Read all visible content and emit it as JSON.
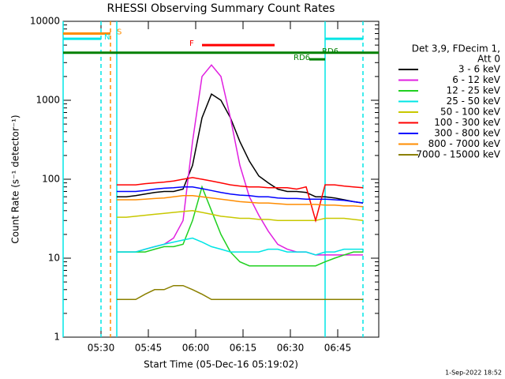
{
  "chart_data": {
    "type": "line",
    "title": "RHESSI Observing Summary Count Rates",
    "xlabel": "Start Time (05-Dec-16 05:19:02)",
    "ylabel": "Count Rate (s⁻¹ detector⁻¹)",
    "footer": "1-Sep-2022 18:52",
    "legend_title": [
      "Det 3,9, FDecim 1,",
      "Att 0"
    ],
    "log_y": true,
    "xlim": [
      "05:18",
      "06:58"
    ],
    "xticks": [
      "05:30",
      "05:45",
      "06:00",
      "06:15",
      "06:30",
      "06:45"
    ],
    "ylim": [
      1,
      10000
    ],
    "yticks": [
      1,
      10,
      100,
      1000,
      10000
    ],
    "x": [
      "05:35",
      "05:38",
      "05:41",
      "05:44",
      "05:47",
      "05:50",
      "05:53",
      "05:56",
      "05:59",
      "06:02",
      "06:05",
      "06:08",
      "06:11",
      "06:14",
      "06:17",
      "06:20",
      "06:23",
      "06:26",
      "06:29",
      "06:32",
      "06:35",
      "06:38",
      "06:41",
      "06:44",
      "06:47",
      "06:50",
      "06:53"
    ],
    "series": [
      {
        "name": "3 - 6 keV",
        "color": "#000000",
        "values": [
          60,
          60,
          62,
          65,
          68,
          70,
          70,
          75,
          150,
          600,
          1200,
          1000,
          600,
          300,
          170,
          110,
          90,
          75,
          70,
          70,
          68,
          60,
          60,
          58,
          55,
          52,
          50
        ]
      },
      {
        "name": "6 - 12 keV",
        "color": "#e020e0",
        "values": [
          12,
          12,
          12,
          13,
          14,
          15,
          18,
          30,
          300,
          2000,
          2800,
          2000,
          600,
          150,
          60,
          35,
          22,
          15,
          13,
          12,
          12,
          11,
          11,
          11,
          11,
          11,
          11
        ]
      },
      {
        "name": "12 - 25 keV",
        "color": "#20d020",
        "values": [
          12,
          12,
          12,
          12,
          13,
          14,
          14,
          15,
          30,
          80,
          40,
          20,
          12,
          9,
          8,
          8,
          8,
          8,
          8,
          8,
          8,
          8,
          9,
          10,
          11,
          12,
          12
        ]
      },
      {
        "name": "25 - 50 keV",
        "color": "#00e5e5",
        "values": [
          12,
          12,
          12,
          13,
          14,
          15,
          16,
          17,
          18,
          16,
          14,
          13,
          12,
          12,
          12,
          12,
          13,
          13,
          12,
          12,
          12,
          11,
          12,
          12,
          13,
          13,
          13
        ]
      },
      {
        "name": "50 - 100 keV",
        "color": "#c8c800",
        "values": [
          33,
          33,
          34,
          35,
          36,
          37,
          38,
          39,
          40,
          38,
          36,
          34,
          33,
          32,
          32,
          31,
          31,
          30,
          30,
          30,
          30,
          30,
          32,
          32,
          32,
          31,
          30
        ]
      },
      {
        "name": "100 - 300 keV",
        "color": "#ff0000",
        "values": [
          85,
          85,
          85,
          88,
          90,
          92,
          95,
          100,
          105,
          100,
          95,
          90,
          85,
          82,
          80,
          80,
          78,
          78,
          78,
          75,
          80,
          30,
          85,
          85,
          82,
          80,
          78
        ]
      },
      {
        "name": "300 - 800 keV",
        "color": "#0000ff",
        "values": [
          70,
          70,
          70,
          72,
          75,
          77,
          78,
          80,
          80,
          76,
          72,
          68,
          65,
          63,
          62,
          60,
          60,
          58,
          57,
          57,
          56,
          56,
          56,
          55,
          54,
          52,
          50
        ]
      },
      {
        "name": "800 - 7000 keV",
        "color": "#ff8c00",
        "values": [
          55,
          55,
          55,
          56,
          57,
          58,
          60,
          62,
          62,
          60,
          58,
          56,
          54,
          52,
          51,
          50,
          50,
          49,
          48,
          48,
          48,
          48,
          47,
          47,
          46,
          46,
          45
        ]
      },
      {
        "name": "7000 - 15000 keV",
        "color": "#8b8000",
        "values": [
          3,
          3,
          3,
          3.5,
          4,
          4,
          4.5,
          4.5,
          4,
          3.5,
          3,
          3,
          3,
          3,
          3,
          3,
          3,
          3,
          3,
          3,
          3,
          3,
          3,
          3,
          3,
          3,
          3
        ]
      }
    ],
    "vlines": [
      {
        "x": "05:18",
        "color": "#00e5e5",
        "dashed": false
      },
      {
        "x": "05:30",
        "color": "#00e5e5",
        "dashed": true
      },
      {
        "x": "05:33",
        "color": "#ff8c00",
        "dashed": true
      },
      {
        "x": "05:35",
        "color": "#00e5e5",
        "dashed": false
      },
      {
        "x": "06:41",
        "color": "#00e5e5",
        "dashed": false
      },
      {
        "x": "06:53",
        "color": "#00e5e5",
        "dashed": true
      }
    ],
    "bars": [
      {
        "text": "S",
        "x": [
          "05:18",
          "05:33"
        ],
        "y": 7000,
        "color": "#ff8c00",
        "label_x": "05:35"
      },
      {
        "text": "N",
        "x": [
          "05:18",
          "05:30"
        ],
        "y": 6000,
        "color": "#00e5e5",
        "label_x": "05:31"
      },
      {
        "text": "F",
        "x": [
          "06:02",
          "06:25"
        ],
        "y": 5000,
        "color": "#ff0000",
        "label_x": "05:58"
      },
      {
        "text": "RD6",
        "x": [
          "05:18",
          "06:58"
        ],
        "y": 4000,
        "color": "#008000",
        "label_x": "06:40"
      },
      {
        "text": "RD6",
        "x": [
          "06:36",
          "06:41"
        ],
        "y": 3300,
        "color": "#008000",
        "label_x": "06:31"
      },
      {
        "x": [
          "06:41",
          "06:53"
        ],
        "y": 6000,
        "color": "#00e5e5"
      }
    ]
  }
}
